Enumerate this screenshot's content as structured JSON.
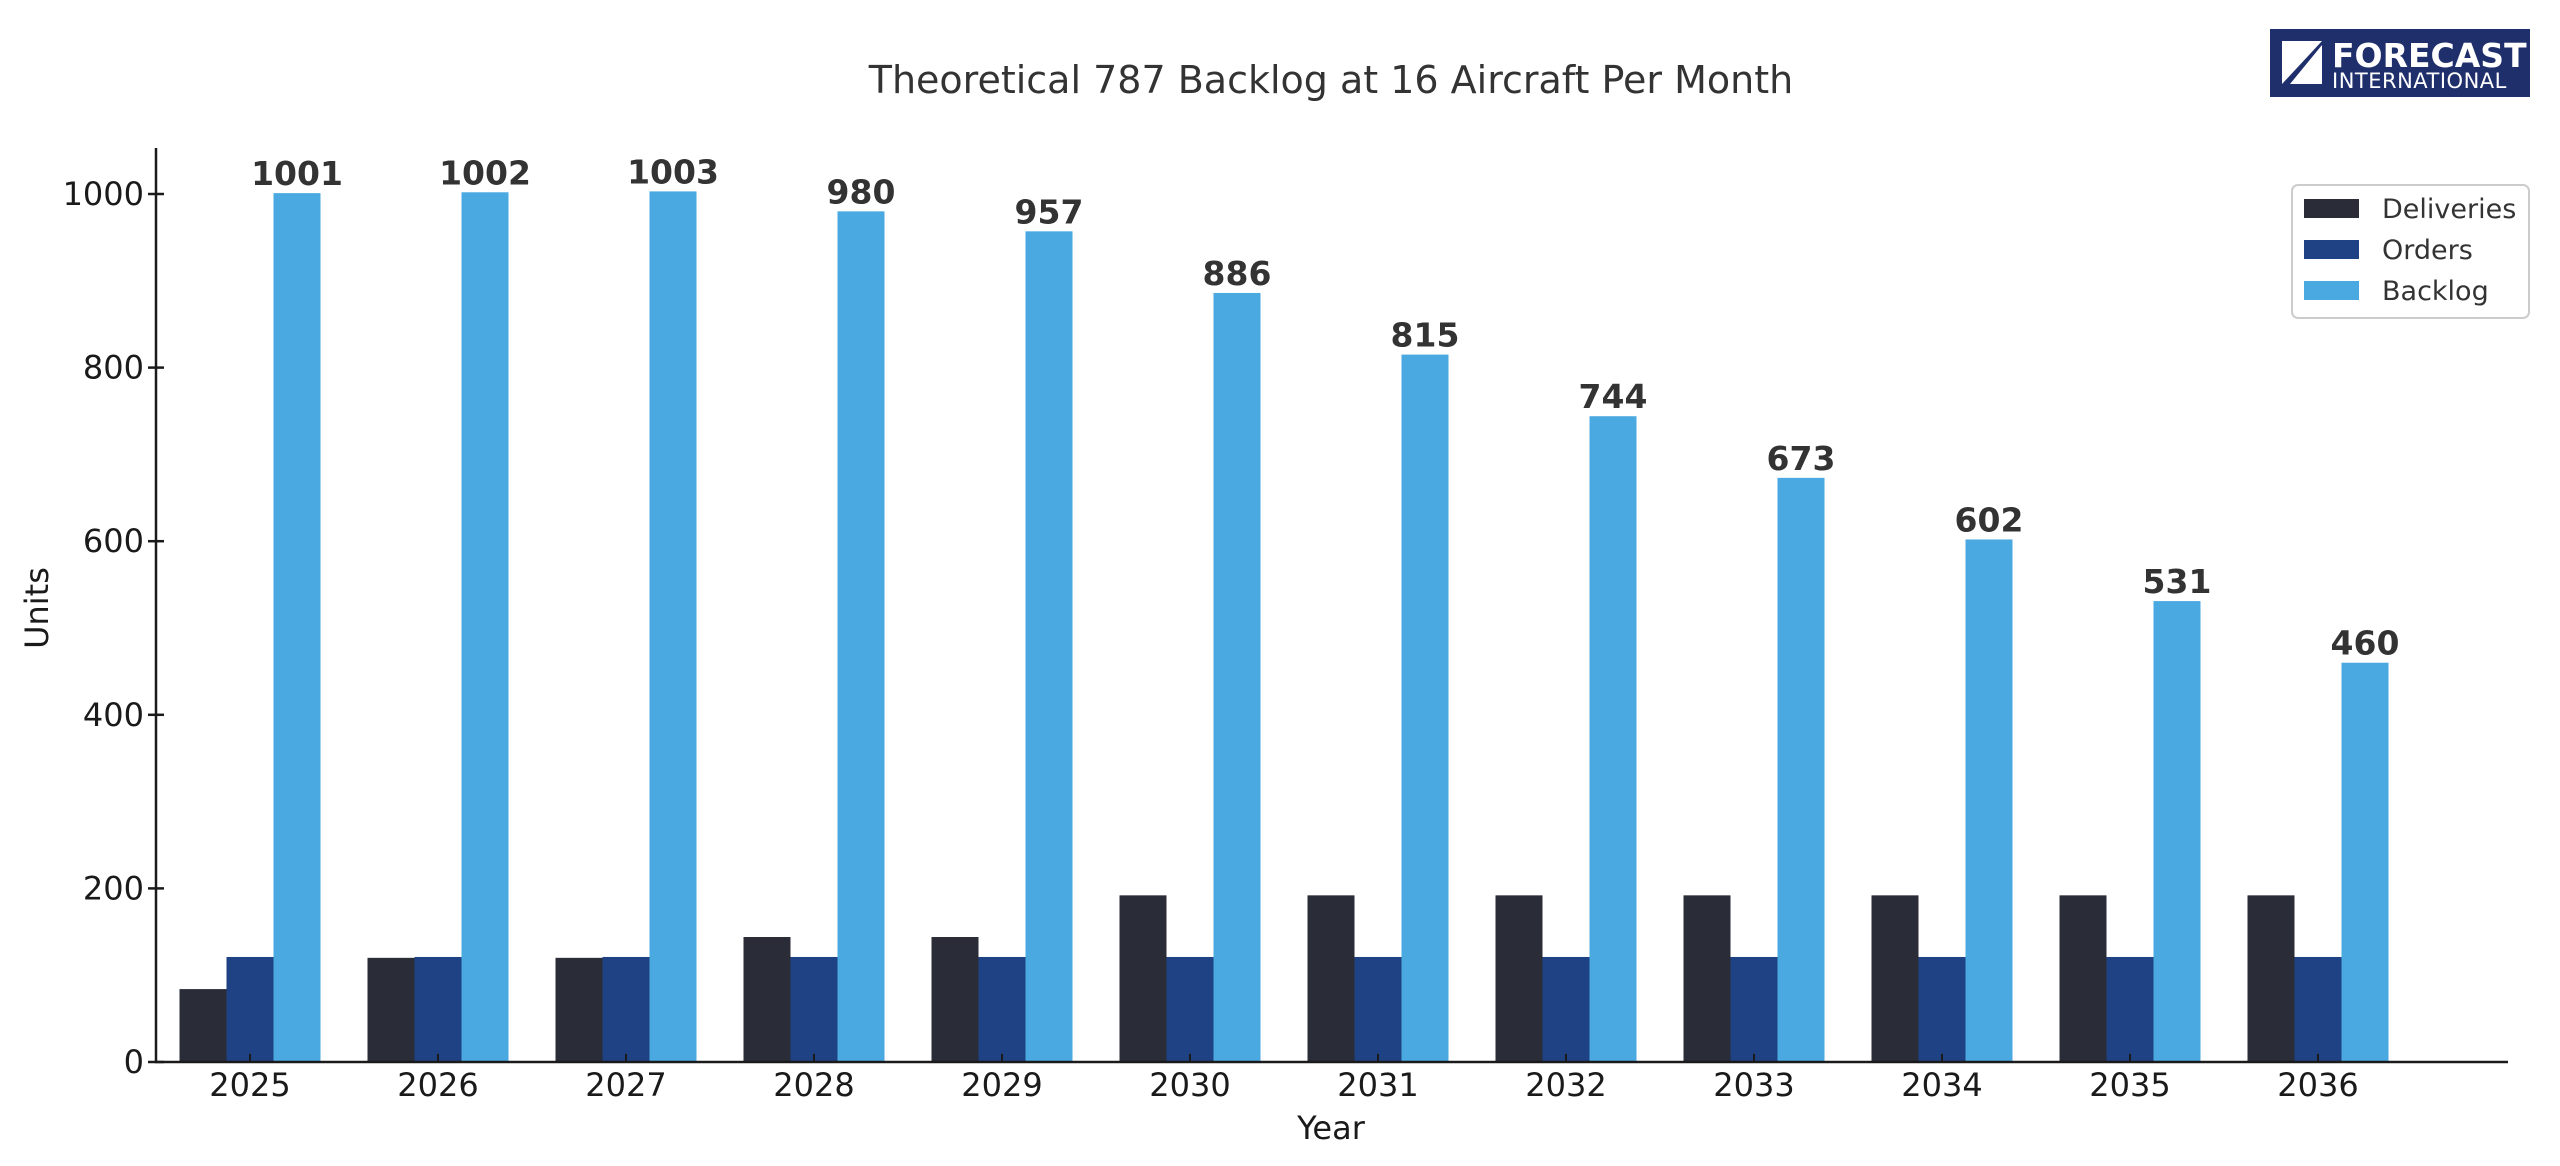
{
  "logo": {
    "line1": "FORECAST",
    "line2": "INTERNATIONAL",
    "background": "#1f2f6b"
  },
  "chart_data": {
    "type": "bar",
    "title": "Theoretical 787 Backlog at 16 Aircraft Per Month",
    "xlabel": "Year",
    "ylabel": "Units",
    "categories": [
      "2025",
      "2026",
      "2027",
      "2028",
      "2029",
      "2030",
      "2031",
      "2032",
      "2033",
      "2034",
      "2035",
      "2036"
    ],
    "series": [
      {
        "name": "Deliveries",
        "color": "#2a2c37",
        "values": [
          84,
          120,
          120,
          144,
          144,
          192,
          192,
          192,
          192,
          192,
          192,
          192
        ]
      },
      {
        "name": "Orders",
        "color": "#1f4284",
        "values": [
          121,
          121,
          121,
          121,
          121,
          121,
          121,
          121,
          121,
          121,
          121,
          121
        ]
      },
      {
        "name": "Backlog",
        "color": "#4aa9e1",
        "values": [
          1001,
          1002,
          1003,
          980,
          957,
          886,
          815,
          744,
          673,
          602,
          531,
          460
        ],
        "labeled": true
      }
    ],
    "ylim": [
      0,
      1053
    ],
    "yticks": [
      0,
      200,
      400,
      600,
      800,
      1000
    ],
    "grid": false,
    "legend_position": "top-right"
  }
}
